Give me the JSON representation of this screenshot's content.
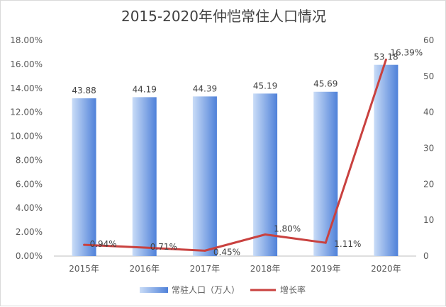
{
  "chart_data": {
    "type": "bar+line",
    "title": "2015-2020年仲恺常住人口情况",
    "categories": [
      "2015年",
      "2016年",
      "2017年",
      "2018年",
      "2019年",
      "2020年"
    ],
    "series": [
      {
        "name": "常驻人口（万人）",
        "type": "bar",
        "axis": "right",
        "values": [
          43.88,
          44.19,
          44.39,
          45.19,
          45.69,
          53.18
        ],
        "labels": [
          "43.88",
          "44.19",
          "44.39",
          "45.19",
          "45.69",
          "53.18"
        ]
      },
      {
        "name": "增长率",
        "type": "line",
        "axis": "left",
        "values": [
          0.94,
          0.71,
          0.45,
          1.8,
          1.11,
          16.39
        ],
        "labels": [
          "0.94%",
          "0.71%",
          "0.45%",
          "1.80%",
          "1.11%",
          "16.39%"
        ]
      }
    ],
    "y_left": {
      "ylim": [
        0,
        18
      ],
      "ticks": [
        "0.00%",
        "2.00%",
        "4.00%",
        "6.00%",
        "8.00%",
        "10.00%",
        "12.00%",
        "14.00%",
        "16.00%",
        "18.00%"
      ]
    },
    "y_right": {
      "ylim": [
        0,
        60
      ],
      "ticks": [
        "0",
        "10",
        "20",
        "30",
        "40",
        "50",
        "60"
      ]
    },
    "grid": false,
    "legend": "bottom",
    "colors": {
      "bar_light": "#c9dcf7",
      "bar_dark": "#4f81d9",
      "line": "#c9413f",
      "axis": "#bfbfbf",
      "text": "#595959"
    }
  }
}
